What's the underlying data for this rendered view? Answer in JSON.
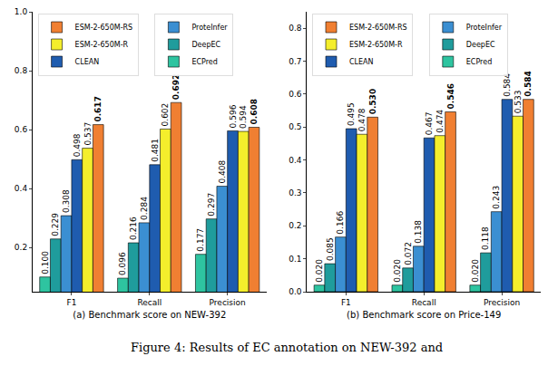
{
  "chart_data": [
    {
      "type": "bar",
      "xlabel": "(a) Benchmark score on NEW-392",
      "categories": [
        "F1",
        "Recall",
        "Precision"
      ],
      "series": [
        {
          "name": "ECPred",
          "color": "#2ec4a0",
          "values": [
            0.1,
            0.096,
            0.177
          ],
          "value_labels": [
            "0.100",
            "0.096",
            "0.177"
          ]
        },
        {
          "name": "DeepEC",
          "color": "#1f9c9c",
          "values": [
            0.229,
            0.216,
            0.297
          ],
          "value_labels": [
            "0.229",
            "0.216",
            "0.297"
          ]
        },
        {
          "name": "ProteInfer",
          "color": "#3b8fd2",
          "values": [
            0.308,
            0.284,
            0.408
          ],
          "value_labels": [
            "0.308",
            "0.284",
            "0.408"
          ]
        },
        {
          "name": "CLEAN",
          "color": "#1f5caf",
          "values": [
            0.498,
            0.481,
            0.596
          ],
          "value_labels": [
            "0.498",
            "0.481",
            "0.596"
          ]
        },
        {
          "name": "ESM-2-650M-R",
          "color": "#f4ee2c",
          "values": [
            0.537,
            0.602,
            0.594
          ],
          "value_labels": [
            "0.537",
            "0.602",
            "0.594"
          ]
        },
        {
          "name": "ESM-2-650M-RS",
          "color": "#f07f32",
          "values": [
            0.617,
            0.692,
            0.608
          ],
          "value_labels": [
            "0.617",
            "0.692",
            "0.608"
          ]
        }
      ],
      "ylim": [
        0.05,
        1.0
      ],
      "yticks": [
        0.2,
        0.4,
        0.6,
        0.8,
        {
          "value": 1.0,
          "label": "1.0"
        }
      ],
      "data_labels": true,
      "legend": "upper left",
      "grid": false
    },
    {
      "type": "bar",
      "xlabel": "(b) Benchmark score on Price-149",
      "categories": [
        "F1",
        "Recall",
        "Precision"
      ],
      "series": [
        {
          "name": "ECPred",
          "color": "#2ec4a0",
          "values": [
            0.02,
            0.02,
            0.02
          ],
          "value_labels": [
            "0.020",
            "0.020",
            "0.020"
          ]
        },
        {
          "name": "DeepEC",
          "color": "#1f9c9c",
          "values": [
            0.085,
            0.072,
            0.118
          ],
          "value_labels": [
            "0.085",
            "0.072",
            "0.118"
          ]
        },
        {
          "name": "ProteInfer",
          "color": "#3b8fd2",
          "values": [
            0.166,
            0.138,
            0.243
          ],
          "value_labels": [
            "0.166",
            "0.138",
            "0.243"
          ]
        },
        {
          "name": "CLEAN",
          "color": "#1f5caf",
          "values": [
            0.495,
            0.467,
            0.584
          ],
          "value_labels": [
            "0.495",
            "0.467",
            "0.584"
          ]
        },
        {
          "name": "ESM-2-650M-R",
          "color": "#f4ee2c",
          "values": [
            0.478,
            0.474,
            0.533
          ],
          "value_labels": [
            "0.478",
            "0.474",
            "0.533"
          ]
        },
        {
          "name": "ESM-2-650M-RS",
          "color": "#f07f32",
          "values": [
            0.53,
            0.546,
            0.584
          ],
          "value_labels": [
            "0.530",
            "0.546",
            "0.584"
          ]
        }
      ],
      "ylim": [
        0.0,
        0.85
      ],
      "yticks": [
        {
          "value": 0.0,
          "label": "0.0"
        },
        0.1,
        0.2,
        0.3,
        0.4,
        0.5,
        0.6,
        0.7,
        0.8
      ],
      "data_labels": true,
      "legend": "upper left",
      "grid": false
    }
  ],
  "caption": "Figure 4: Results of EC annotation on NEW-392 and"
}
